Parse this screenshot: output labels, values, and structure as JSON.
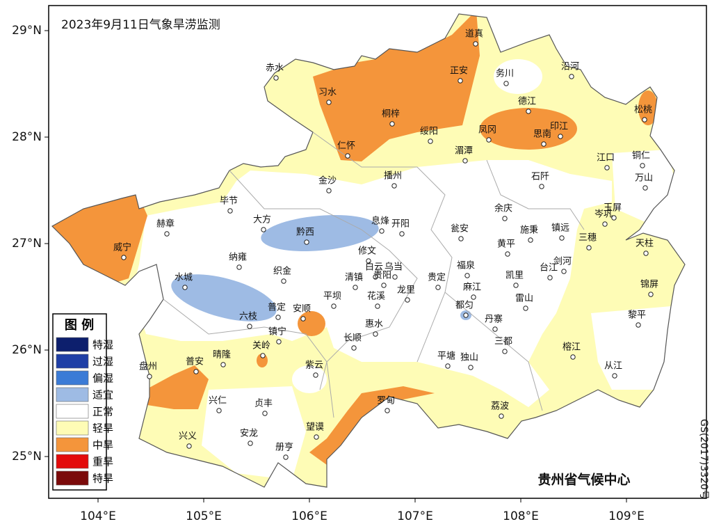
{
  "title": "2023年9月11日气象旱涝监测",
  "lon_ticks": [
    {
      "value": 104,
      "label": "104°E"
    },
    {
      "value": 105,
      "label": "105°E"
    },
    {
      "value": 106,
      "label": "106°E"
    },
    {
      "value": 107,
      "label": "107°E"
    },
    {
      "value": 108,
      "label": "108°E"
    },
    {
      "value": 109,
      "label": "109°E"
    }
  ],
  "lat_ticks": [
    {
      "value": 29,
      "label": "29°N"
    },
    {
      "value": 28,
      "label": "28°N"
    },
    {
      "value": 27,
      "label": "27°N"
    },
    {
      "value": 26,
      "label": "26°N"
    },
    {
      "value": 25,
      "label": "25°N"
    }
  ],
  "cities": [
    "赤水",
    "习水",
    "桐梓",
    "道真",
    "正安",
    "务川",
    "沿河",
    "德江",
    "松桃",
    "凤冈",
    "思南",
    "印江",
    "绥阳",
    "湄潭",
    "江口",
    "铜仁",
    "万山",
    "仁怀",
    "金沙",
    "播州",
    "石阡",
    "毕节",
    "大方",
    "黔西",
    "息烽",
    "开阳",
    "余庆",
    "瓮安",
    "施秉",
    "镇远",
    "岑巩",
    "玉屏",
    "赫章",
    "威宁",
    "三穗",
    "黄平",
    "天柱",
    "纳雍",
    "织金",
    "修文",
    "白云",
    "乌当",
    "贵阳",
    "清镇",
    "福泉",
    "贵定",
    "凯里",
    "剑河",
    "台江",
    "水城",
    "花溪",
    "龙里",
    "麻江",
    "雷山",
    "锦屏",
    "平坝",
    "都匀",
    "六枝",
    "普定",
    "安顺",
    "镇宁",
    "惠水",
    "丹寨",
    "黎平",
    "三都",
    "长顺",
    "关岭",
    "榕江",
    "盘州",
    "普安",
    "晴隆",
    "紫云",
    "平塘",
    "独山",
    "从江",
    "兴仁",
    "贞丰",
    "罗甸",
    "荔波",
    "兴义",
    "安龙",
    "册亨",
    "望谟"
  ],
  "legend": {
    "title": "图 例",
    "items": [
      {
        "label": "特湿",
        "color": "#0d1f6d"
      },
      {
        "label": "过湿",
        "color": "#1f3fa6"
      },
      {
        "label": "偏湿",
        "color": "#3b7bd6"
      },
      {
        "label": "适宜",
        "color": "#9ebbe4"
      },
      {
        "label": "正常",
        "color": "#ffffff"
      },
      {
        "label": "轻旱",
        "color": "#fefcb6"
      },
      {
        "label": "中旱",
        "color": "#f4953b"
      },
      {
        "label": "重旱",
        "color": "#e30b0b"
      },
      {
        "label": "特旱",
        "color": "#7b0a0a"
      }
    ]
  },
  "credit": "贵州省气候中心",
  "approval": "GS(2017)3320号"
}
